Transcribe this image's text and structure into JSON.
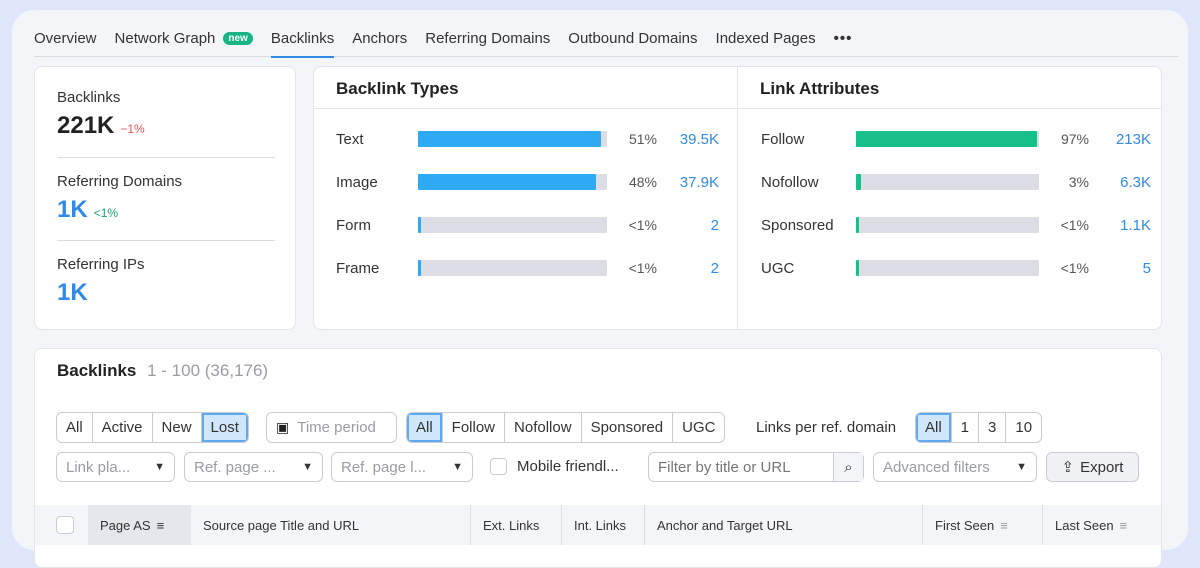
{
  "tabs": [
    {
      "label": "Overview"
    },
    {
      "label": "Network Graph",
      "badge": "new"
    },
    {
      "label": "Backlinks",
      "active": true
    },
    {
      "label": "Anchors"
    },
    {
      "label": "Referring Domains"
    },
    {
      "label": "Outbound Domains"
    },
    {
      "label": "Indexed Pages"
    }
  ],
  "more_icon": "more-horizontal-icon",
  "stats": {
    "backlinks": {
      "label": "Backlinks",
      "value": "221K",
      "change": "−1%"
    },
    "ref_domains": {
      "label": "Referring Domains",
      "value": "1K",
      "change": "<1%"
    },
    "ref_ips": {
      "label": "Referring IPs",
      "value": "1K"
    }
  },
  "backlink_types": {
    "title": "Backlink Types",
    "rows": [
      {
        "label": "Text",
        "pct": "51%",
        "value": "39.5K",
        "fill": 0.97
      },
      {
        "label": "Image",
        "pct": "48%",
        "value": "37.9K",
        "fill": 0.94
      },
      {
        "label": "Form",
        "pct": "<1%",
        "value": "2",
        "fill": 0.01
      },
      {
        "label": "Frame",
        "pct": "<1%",
        "value": "2",
        "fill": 0.01
      }
    ]
  },
  "link_attributes": {
    "title": "Link Attributes",
    "rows": [
      {
        "label": "Follow",
        "pct": "97%",
        "value": "213K",
        "fill": 0.99
      },
      {
        "label": "Nofollow",
        "pct": "3%",
        "value": "6.3K",
        "fill": 0.03
      },
      {
        "label": "Sponsored",
        "pct": "<1%",
        "value": "1.1K",
        "fill": 0.01
      },
      {
        "label": "UGC",
        "pct": "<1%",
        "value": "5",
        "fill": 0.01
      }
    ]
  },
  "colors": {
    "blue": "#2eaaf5",
    "green": "#17c08a",
    "link": "#2f8ae8",
    "negative": "#ef5350",
    "positive": "#17a36e"
  },
  "backlinks_section": {
    "title": "Backlinks",
    "range": "1 - 100 (36,176)",
    "status_filter": [
      "All",
      "Active",
      "New",
      "Lost"
    ],
    "time_period": "Time period",
    "type_filter": [
      "All",
      "Follow",
      "Nofollow",
      "Sponsored",
      "UGC"
    ],
    "links_per_label": "Links per ref. domain",
    "links_per": [
      "All",
      "1",
      "3",
      "10"
    ],
    "dropdowns": [
      "Link pla...",
      "Ref. page ...",
      "Ref. page l..."
    ],
    "mobile": "Mobile friendl...",
    "search_placeholder": "Filter by title or URL",
    "advanced": "Advanced filters",
    "export": "Export",
    "columns": [
      "Page AS",
      "Source page Title and URL",
      "Ext. Links",
      "Int. Links",
      "Anchor and Target URL",
      "First Seen",
      "Last Seen"
    ]
  }
}
